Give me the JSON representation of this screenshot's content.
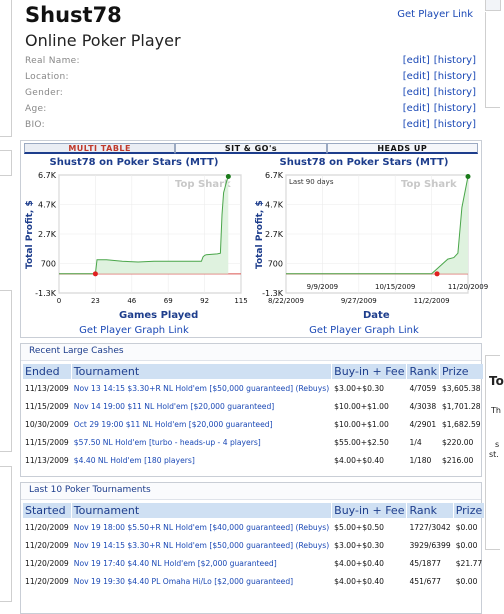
{
  "profile": {
    "name": "Shust78",
    "get_player_link": "Get Player Link",
    "type": "Online Poker Player",
    "fields": [
      {
        "label": "Real Name:"
      },
      {
        "label": "Location:"
      },
      {
        "label": "Gender:"
      },
      {
        "label": "Age:"
      },
      {
        "label": "BIO:"
      }
    ],
    "edit_label": "[edit]",
    "history_label": "[history]"
  },
  "tabs": [
    "MULTI TABLE",
    "SIT & GO's",
    "HEADS UP"
  ],
  "graphs": {
    "watermark": "Top Shark",
    "link": "Get Player Graph Link",
    "left": {
      "title": "Shust78 on Poker Stars (MTT)",
      "ylabel": "Total Profit, $",
      "xlabel": "Games Played",
      "yticks": [
        "6.7K",
        "4.7K",
        "2.7K",
        "700",
        "-1.3K"
      ],
      "xticks": [
        "0",
        "23",
        "46",
        "69",
        "92",
        "115"
      ]
    },
    "right": {
      "title": "Shust78 on Poker Stars (MTT)",
      "subtitle": "Last 90 days",
      "ylabel": "Total Profit, $",
      "xlabel": "Date",
      "yticks": [
        "6.7K",
        "4.7K",
        "2.7K",
        "700",
        "-1.3K"
      ],
      "xticks_top": [
        "9/9/2009",
        "10/15/2009",
        "11/20/2009"
      ],
      "xticks_bottom": [
        "8/22/2009",
        "9/27/2009",
        "11/2/2009"
      ]
    }
  },
  "chart_data": [
    {
      "type": "line",
      "title": "Shust78 on Poker Stars (MTT)",
      "xlabel": "Games Played",
      "ylabel": "Total Profit, $",
      "xlim": [
        0,
        115
      ],
      "ylim": [
        -1300,
        6700
      ],
      "series": [
        {
          "x": [
            0,
            10,
            23,
            24,
            30,
            40,
            50,
            60,
            70,
            80,
            90,
            91,
            92,
            93,
            100,
            102,
            103,
            104,
            105,
            106,
            107
          ],
          "y": [
            0,
            0,
            0,
            950,
            950,
            850,
            800,
            850,
            850,
            850,
            850,
            1150,
            1250,
            1300,
            1350,
            1400,
            4000,
            5500,
            5900,
            6300,
            6600
          ]
        }
      ]
    },
    {
      "type": "line",
      "title": "Shust78 on Poker Stars (MTT)",
      "subtitle": "Last 90 days",
      "xlabel": "Date",
      "ylabel": "Total Profit, $",
      "ylim": [
        -1300,
        6700
      ],
      "series": [
        {
          "x": [
            "8/22/2009",
            "9/9/2009",
            "9/27/2009",
            "10/15/2009",
            "10/29/2009",
            "11/2/2009",
            "11/10/2009",
            "11/13/2009",
            "11/15/2009",
            "11/17/2009",
            "11/20/2009"
          ],
          "y": [
            0,
            0,
            0,
            0,
            0,
            0,
            1000,
            1100,
            1400,
            4500,
            6600
          ]
        }
      ]
    }
  ],
  "cashes": {
    "header": "Recent Large Cashes",
    "columns": [
      "Ended",
      "Tournament",
      "Buy-in + Fee",
      "Rank",
      "Prize"
    ],
    "rows": [
      {
        "date": "11/13/2009",
        "name": "Nov 13 14:15 $3.30+R NL Hold'em [$50,000 guaranteed] (Rebuys)",
        "buyin": "$3.00+$0.30",
        "rank": "4/7059",
        "prize": "$3,605.38"
      },
      {
        "date": "11/15/2009",
        "name": "Nov 14 19:00 $11 NL Hold'em [$20,000 guaranteed]",
        "buyin": "$10.00+$1.00",
        "rank": "4/3038",
        "prize": "$1,701.28"
      },
      {
        "date": "10/30/2009",
        "name": "Oct 29 19:00 $11 NL Hold'em [$20,000 guaranteed]",
        "buyin": "$10.00+$1.00",
        "rank": "4/2901",
        "prize": "$1,682.59"
      },
      {
        "date": "11/15/2009",
        "name": "$57.50 NL Hold'em [turbo - heads-up - 4 players]",
        "buyin": "$55.00+$2.50",
        "rank": "1/4",
        "prize": "$220.00"
      },
      {
        "date": "11/13/2009",
        "name": "$4.40 NL Hold'em [180 players]",
        "buyin": "$4.00+$0.40",
        "rank": "1/180",
        "prize": "$216.00"
      }
    ]
  },
  "last10": {
    "header": "Last 10 Poker Tournaments",
    "columns": [
      "Started",
      "Tournament",
      "Buy-in + Fee",
      "Rank",
      "Prize"
    ],
    "rows": [
      {
        "date": "11/20/2009",
        "name": "Nov 19 18:00 $5.50+R NL Hold'em [$40,000 guaranteed] (Rebuys)",
        "buyin": "$5.00+$0.50",
        "rank": "1727/3042",
        "prize": "$0.00"
      },
      {
        "date": "11/20/2009",
        "name": "Nov 19 14:15 $3.30+R NL Hold'em [$50,000 guaranteed] (Rebuys)",
        "buyin": "$3.00+$0.30",
        "rank": "3929/6399",
        "prize": "$0.00"
      },
      {
        "date": "11/20/2009",
        "name": "Nov 19 17:40 $4.40 NL Hold'em [$2,000 guaranteed]",
        "buyin": "$4.00+$0.40",
        "rank": "45/1877",
        "prize": "$21.77"
      },
      {
        "date": "11/20/2009",
        "name": "Nov 19 19:30 $4.40 PL Omaha Hi/Lo [$2,000 guaranteed]",
        "buyin": "$4.00+$0.40",
        "rank": "451/677",
        "prize": "$0.00"
      }
    ]
  },
  "right_panel": {
    "title": "To",
    "line1": "Th",
    "line2": "s",
    "line3": "st."
  }
}
